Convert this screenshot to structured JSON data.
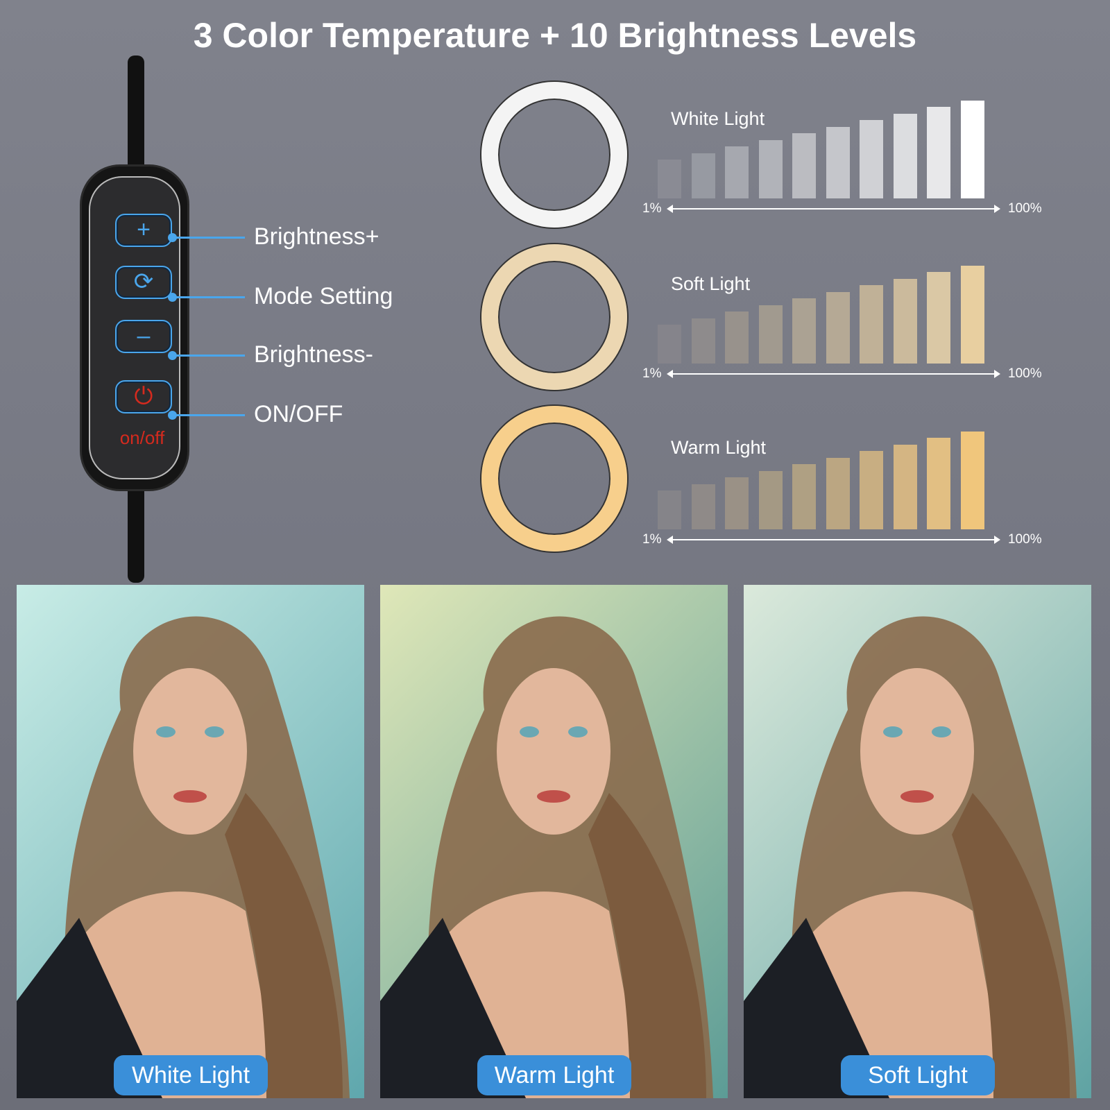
{
  "title": "3 Color Temperature + 10 Brightness Levels",
  "remote": {
    "buttons": [
      {
        "icon": "plus-icon",
        "glyph": "+",
        "label": "Brightness+"
      },
      {
        "icon": "mode-cycle-icon",
        "glyph": "⟳",
        "label": "Mode Setting"
      },
      {
        "icon": "minus-icon",
        "glyph": "–",
        "label": "Brightness-"
      },
      {
        "icon": "power-icon",
        "glyph": "⏻",
        "label": "ON/OFF"
      }
    ],
    "onoff_text": "on/off",
    "accent": "#4aa6ec",
    "power_color": "#d52a1e"
  },
  "modes": [
    {
      "name": "White Light",
      "ring_color": "#f4f4f4",
      "bar_colors": [
        "#8a8b94",
        "#979aa2",
        "#a6a8af",
        "#b1b3b9",
        "#bbbcc1",
        "#c5c6cb",
        "#d0d1d5",
        "#dcdde0",
        "#e8e8ea",
        "#ffffff"
      ]
    },
    {
      "name": "Soft Light",
      "ring_color": "#ecd7b2",
      "bar_colors": [
        "#85848b",
        "#8e8b8c",
        "#98928c",
        "#a19a8f",
        "#aba293",
        "#b5a995",
        "#c0b197",
        "#cbba9c",
        "#dac8a5",
        "#e8cfa0"
      ]
    },
    {
      "name": "Warm Light",
      "ring_color": "#f7cf8c",
      "bar_colors": [
        "#858489",
        "#8f8a88",
        "#9a9186",
        "#a49984",
        "#afa083",
        "#bba682",
        "#c8ae82",
        "#d4b583",
        "#e2bf83",
        "#f0c67c"
      ]
    }
  ],
  "levels": 10,
  "min_label": "1%",
  "max_label": "100%",
  "photos": [
    {
      "label": "White Light",
      "bg": [
        "#c8ece6",
        "#5fa7ad"
      ]
    },
    {
      "label": "Warm Light",
      "bg": [
        "#dfe7b8",
        "#5c9c96"
      ]
    },
    {
      "label": "Soft Light",
      "bg": [
        "#dbe9db",
        "#5fa3a3"
      ]
    }
  ]
}
